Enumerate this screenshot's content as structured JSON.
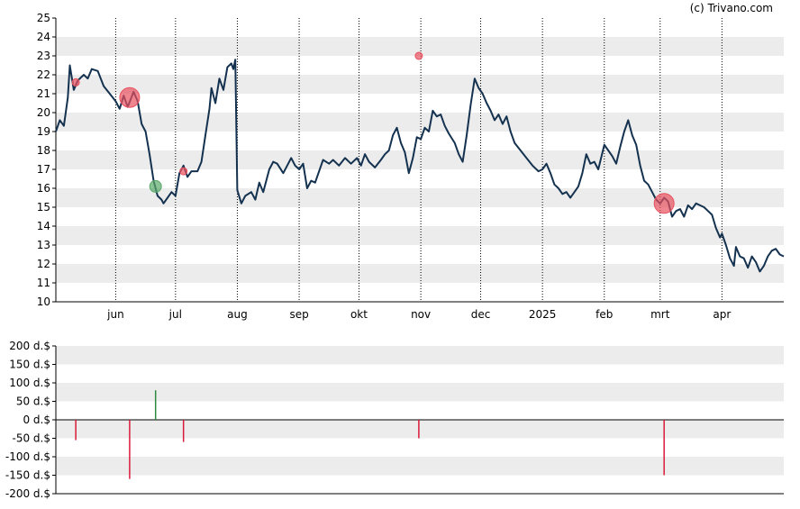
{
  "credit": "(c) Trivano.com",
  "chart_data": [
    {
      "type": "line",
      "title": "",
      "xlabel": "",
      "ylabel": "",
      "ylim": [
        10,
        25
      ],
      "yticks": [
        "10",
        "11",
        "12",
        "13",
        "14",
        "15",
        "16",
        "17",
        "18",
        "19",
        "20",
        "21",
        "22",
        "23",
        "24",
        "25"
      ],
      "grid": "alternating horizontal bands, dotted vertical lines at month starts",
      "line_color": "#14324f",
      "months": [
        {
          "label": "jun",
          "date": "2024-06-01"
        },
        {
          "label": "jul",
          "date": "2024-07-01"
        },
        {
          "label": "aug",
          "date": "2024-08-01"
        },
        {
          "label": "sep",
          "date": "2024-09-01"
        },
        {
          "label": "okt",
          "date": "2024-10-01"
        },
        {
          "label": "nov",
          "date": "2024-11-01"
        },
        {
          "label": "dec",
          "date": "2024-12-01"
        },
        {
          "label": "2025",
          "date": "2025-01-01"
        },
        {
          "label": "feb",
          "date": "2025-02-01"
        },
        {
          "label": "mrt",
          "date": "2025-03-01"
        },
        {
          "label": "apr",
          "date": "2025-04-01"
        }
      ],
      "xrange": [
        "2024-05-02",
        "2025-05-02"
      ],
      "series": [
        {
          "values": [
            [
              "2024-05-02",
              19.0
            ],
            [
              "2024-05-04",
              19.6
            ],
            [
              "2024-05-06",
              19.3
            ],
            [
              "2024-05-08",
              20.8
            ],
            [
              "2024-05-09",
              22.5
            ],
            [
              "2024-05-11",
              21.2
            ],
            [
              "2024-05-13",
              21.7
            ],
            [
              "2024-05-16",
              22.0
            ],
            [
              "2024-05-18",
              21.8
            ],
            [
              "2024-05-20",
              22.3
            ],
            [
              "2024-05-23",
              22.2
            ],
            [
              "2024-05-26",
              21.4
            ],
            [
              "2024-05-29",
              21.0
            ],
            [
              "2024-06-01",
              20.6
            ],
            [
              "2024-06-03",
              20.2
            ],
            [
              "2024-06-05",
              20.9
            ],
            [
              "2024-06-07",
              20.3
            ],
            [
              "2024-06-10",
              21.1
            ],
            [
              "2024-06-12",
              20.6
            ],
            [
              "2024-06-14",
              19.4
            ],
            [
              "2024-06-16",
              19.0
            ],
            [
              "2024-06-18",
              17.8
            ],
            [
              "2024-06-20",
              16.4
            ],
            [
              "2024-06-22",
              15.6
            ],
            [
              "2024-06-24",
              15.4
            ],
            [
              "2024-06-25",
              15.2
            ],
            [
              "2024-06-27",
              15.5
            ],
            [
              "2024-06-29",
              15.8
            ],
            [
              "2024-07-01",
              15.6
            ],
            [
              "2024-07-03",
              16.8
            ],
            [
              "2024-07-05",
              17.2
            ],
            [
              "2024-07-07",
              16.6
            ],
            [
              "2024-07-09",
              16.9
            ],
            [
              "2024-07-12",
              16.9
            ],
            [
              "2024-07-14",
              17.4
            ],
            [
              "2024-07-16",
              18.8
            ],
            [
              "2024-07-18",
              20.2
            ],
            [
              "2024-07-19",
              21.3
            ],
            [
              "2024-07-21",
              20.5
            ],
            [
              "2024-07-23",
              21.8
            ],
            [
              "2024-07-25",
              21.2
            ],
            [
              "2024-07-27",
              22.4
            ],
            [
              "2024-07-29",
              22.6
            ],
            [
              "2024-07-30",
              22.3
            ],
            [
              "2024-07-31",
              22.8
            ],
            [
              "2024-08-01",
              15.9
            ],
            [
              "2024-08-03",
              15.2
            ],
            [
              "2024-08-05",
              15.6
            ],
            [
              "2024-08-08",
              15.8
            ],
            [
              "2024-08-10",
              15.4
            ],
            [
              "2024-08-12",
              16.3
            ],
            [
              "2024-08-14",
              15.8
            ],
            [
              "2024-08-17",
              17.0
            ],
            [
              "2024-08-19",
              17.4
            ],
            [
              "2024-08-21",
              17.3
            ],
            [
              "2024-08-24",
              16.8
            ],
            [
              "2024-08-26",
              17.2
            ],
            [
              "2024-08-28",
              17.6
            ],
            [
              "2024-08-30",
              17.2
            ],
            [
              "2024-09-01",
              17.0
            ],
            [
              "2024-09-03",
              17.3
            ],
            [
              "2024-09-05",
              16.0
            ],
            [
              "2024-09-07",
              16.4
            ],
            [
              "2024-09-09",
              16.3
            ],
            [
              "2024-09-11",
              16.9
            ],
            [
              "2024-09-13",
              17.5
            ],
            [
              "2024-09-16",
              17.3
            ],
            [
              "2024-09-18",
              17.5
            ],
            [
              "2024-09-21",
              17.2
            ],
            [
              "2024-09-24",
              17.6
            ],
            [
              "2024-09-27",
              17.3
            ],
            [
              "2024-09-30",
              17.6
            ],
            [
              "2024-10-02",
              17.2
            ],
            [
              "2024-10-04",
              17.8
            ],
            [
              "2024-10-06",
              17.4
            ],
            [
              "2024-10-09",
              17.1
            ],
            [
              "2024-10-12",
              17.5
            ],
            [
              "2024-10-14",
              17.8
            ],
            [
              "2024-10-16",
              18.0
            ],
            [
              "2024-10-18",
              18.8
            ],
            [
              "2024-10-20",
              19.2
            ],
            [
              "2024-10-22",
              18.4
            ],
            [
              "2024-10-24",
              17.9
            ],
            [
              "2024-10-26",
              16.8
            ],
            [
              "2024-10-28",
              17.6
            ],
            [
              "2024-10-30",
              18.7
            ],
            [
              "2024-11-01",
              18.6
            ],
            [
              "2024-11-03",
              19.2
            ],
            [
              "2024-11-05",
              19.0
            ],
            [
              "2024-11-07",
              20.1
            ],
            [
              "2024-11-09",
              19.8
            ],
            [
              "2024-11-11",
              19.9
            ],
            [
              "2024-11-13",
              19.3
            ],
            [
              "2024-11-15",
              18.9
            ],
            [
              "2024-11-18",
              18.4
            ],
            [
              "2024-11-20",
              17.8
            ],
            [
              "2024-11-22",
              17.4
            ],
            [
              "2024-11-24",
              18.8
            ],
            [
              "2024-11-26",
              20.4
            ],
            [
              "2024-11-28",
              21.8
            ],
            [
              "2024-11-30",
              21.3
            ],
            [
              "2024-12-02",
              21.0
            ],
            [
              "2024-12-04",
              20.5
            ],
            [
              "2024-12-06",
              20.1
            ],
            [
              "2024-12-08",
              19.6
            ],
            [
              "2024-12-10",
              19.9
            ],
            [
              "2024-12-12",
              19.4
            ],
            [
              "2024-12-14",
              19.8
            ],
            [
              "2024-12-16",
              19.0
            ],
            [
              "2024-12-18",
              18.4
            ],
            [
              "2024-12-21",
              18.0
            ],
            [
              "2024-12-24",
              17.6
            ],
            [
              "2024-12-27",
              17.2
            ],
            [
              "2024-12-30",
              16.9
            ],
            [
              "2025-01-01",
              17.0
            ],
            [
              "2025-01-03",
              17.3
            ],
            [
              "2025-01-05",
              16.8
            ],
            [
              "2025-01-07",
              16.2
            ],
            [
              "2025-01-09",
              16.0
            ],
            [
              "2025-01-11",
              15.7
            ],
            [
              "2025-01-13",
              15.8
            ],
            [
              "2025-01-15",
              15.5
            ],
            [
              "2025-01-17",
              15.8
            ],
            [
              "2025-01-19",
              16.1
            ],
            [
              "2025-01-21",
              16.8
            ],
            [
              "2025-01-23",
              17.8
            ],
            [
              "2025-01-25",
              17.3
            ],
            [
              "2025-01-27",
              17.4
            ],
            [
              "2025-01-29",
              17.0
            ],
            [
              "2025-02-01",
              18.3
            ],
            [
              "2025-02-03",
              18.0
            ],
            [
              "2025-02-05",
              17.7
            ],
            [
              "2025-02-07",
              17.3
            ],
            [
              "2025-02-09",
              18.2
            ],
            [
              "2025-02-11",
              19.0
            ],
            [
              "2025-02-13",
              19.6
            ],
            [
              "2025-02-15",
              18.8
            ],
            [
              "2025-02-17",
              18.3
            ],
            [
              "2025-02-19",
              17.2
            ],
            [
              "2025-02-21",
              16.4
            ],
            [
              "2025-02-23",
              16.2
            ],
            [
              "2025-02-25",
              15.8
            ],
            [
              "2025-02-27",
              15.4
            ],
            [
              "2025-03-01",
              15.2
            ],
            [
              "2025-03-03",
              15.5
            ],
            [
              "2025-03-05",
              15.3
            ],
            [
              "2025-03-07",
              14.5
            ],
            [
              "2025-03-09",
              14.8
            ],
            [
              "2025-03-11",
              14.9
            ],
            [
              "2025-03-13",
              14.5
            ],
            [
              "2025-03-15",
              15.1
            ],
            [
              "2025-03-17",
              14.9
            ],
            [
              "2025-03-19",
              15.2
            ],
            [
              "2025-03-21",
              15.1
            ],
            [
              "2025-03-23",
              15.0
            ],
            [
              "2025-03-25",
              14.8
            ],
            [
              "2025-03-27",
              14.6
            ],
            [
              "2025-03-29",
              13.9
            ],
            [
              "2025-03-31",
              13.4
            ],
            [
              "2025-04-01",
              13.6
            ],
            [
              "2025-04-03",
              13.0
            ],
            [
              "2025-04-05",
              12.3
            ],
            [
              "2025-04-07",
              11.9
            ],
            [
              "2025-04-08",
              12.9
            ],
            [
              "2025-04-10",
              12.4
            ],
            [
              "2025-04-12",
              12.3
            ],
            [
              "2025-04-14",
              11.8
            ],
            [
              "2025-04-16",
              12.4
            ],
            [
              "2025-04-18",
              12.1
            ],
            [
              "2025-04-20",
              11.6
            ],
            [
              "2025-04-22",
              11.9
            ],
            [
              "2025-04-24",
              12.4
            ],
            [
              "2025-04-26",
              12.7
            ],
            [
              "2025-04-28",
              12.8
            ],
            [
              "2025-04-30",
              12.5
            ],
            [
              "2025-05-02",
              12.4
            ]
          ]
        }
      ],
      "markers": [
        {
          "date": "2024-05-12",
          "value": 21.6,
          "color": "#e8515f",
          "size": "small"
        },
        {
          "date": "2024-06-08",
          "value": 20.8,
          "color": "#e8515f",
          "size": "large"
        },
        {
          "date": "2024-06-21",
          "value": 16.1,
          "color": "#5aa86a",
          "size": "medium"
        },
        {
          "date": "2024-07-05",
          "value": 16.9,
          "color": "#e8515f",
          "size": "small"
        },
        {
          "date": "2024-10-31",
          "value": 23.0,
          "color": "#e8515f",
          "size": "small"
        },
        {
          "date": "2025-03-03",
          "value": 15.2,
          "color": "#e8515f",
          "size": "large"
        }
      ]
    },
    {
      "type": "bar",
      "title": "",
      "xlabel": "",
      "ylabel": "",
      "ylim": [
        -200,
        200
      ],
      "yticks": [
        "200 d.$",
        "150 d.$",
        "100 d.$",
        "50 d.$",
        "0 d.$",
        "-50 d.$",
        "-100 d.$",
        "-150 d.$",
        "-200 d.$"
      ],
      "ytick_values": [
        200,
        150,
        100,
        50,
        0,
        -50,
        -100,
        -150,
        -200
      ],
      "series": [
        {
          "values": [
            {
              "date": "2024-05-12",
              "value": -55,
              "color": "#d91a3a"
            },
            {
              "date": "2024-06-08",
              "value": -160,
              "color": "#d91a3a"
            },
            {
              "date": "2024-06-21",
              "value": 80,
              "color": "#2e8a3e"
            },
            {
              "date": "2024-07-05",
              "value": -60,
              "color": "#d91a3a"
            },
            {
              "date": "2024-10-31",
              "value": -50,
              "color": "#d91a3a"
            },
            {
              "date": "2025-03-03",
              "value": -150,
              "color": "#d91a3a"
            }
          ]
        }
      ]
    }
  ]
}
